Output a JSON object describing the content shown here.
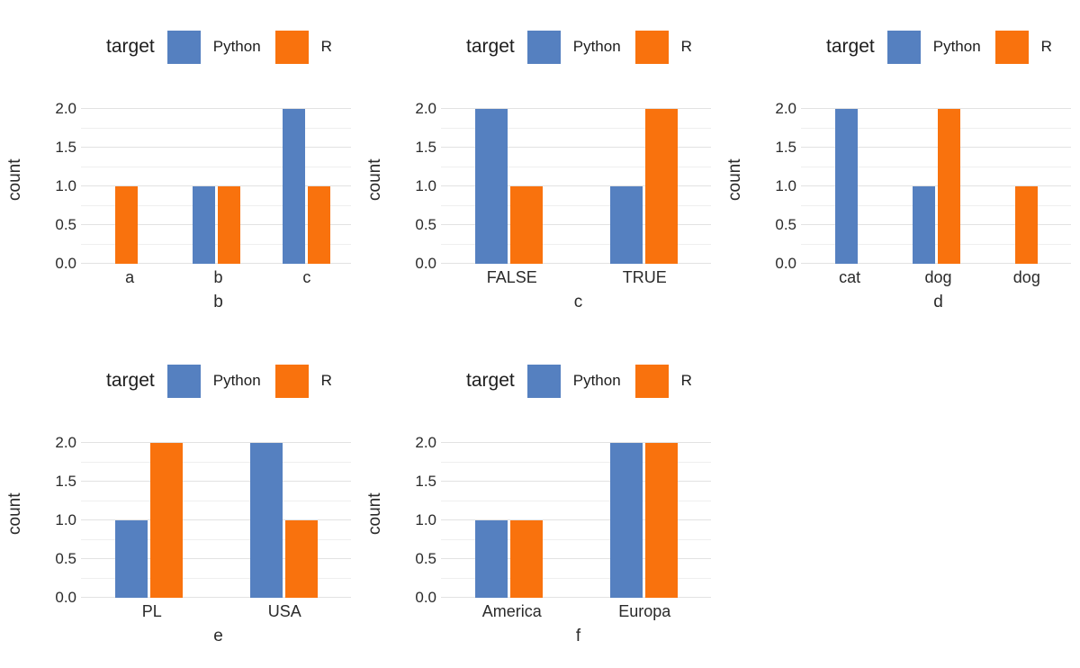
{
  "page": {
    "background": "#ffffff"
  },
  "legend": {
    "title": "target",
    "items": [
      {
        "label": "Python",
        "color": "#5580c0"
      },
      {
        "label": "R",
        "color": "#f9720d"
      }
    ]
  },
  "axis": {
    "ylabel": "count",
    "ytick_labels": [
      "0.0",
      "0.5",
      "1.0",
      "1.5",
      "2.0"
    ],
    "ytick_values": [
      0,
      0.5,
      1,
      1.5,
      2
    ]
  },
  "colors": {
    "python_blue": "#5580c0",
    "r_orange": "#f9720d",
    "gridline_major": "#e2e2e2",
    "gridline_minor": "#efefef",
    "text": "#2a2a2a"
  },
  "chart_data": [
    {
      "type": "bar",
      "title": "",
      "xlabel": "b",
      "ylabel": "count",
      "categories": [
        "a",
        "b",
        "c"
      ],
      "series": [
        {
          "name": "Python",
          "values": [
            null,
            1,
            2
          ]
        },
        {
          "name": "R",
          "values": [
            1,
            1,
            1
          ]
        }
      ],
      "ylim": [
        0,
        2.16
      ],
      "yticks": [
        0,
        0.5,
        1,
        1.5,
        2
      ],
      "grid": true,
      "legend_position": "top"
    },
    {
      "type": "bar",
      "title": "",
      "xlabel": "c",
      "ylabel": "count",
      "categories": [
        "FALSE",
        "TRUE"
      ],
      "series": [
        {
          "name": "Python",
          "values": [
            2,
            1
          ]
        },
        {
          "name": "R",
          "values": [
            1,
            2
          ]
        }
      ],
      "ylim": [
        0,
        2.16
      ],
      "yticks": [
        0,
        0.5,
        1,
        1.5,
        2
      ],
      "grid": true,
      "legend_position": "top"
    },
    {
      "type": "bar",
      "title": "",
      "xlabel": "d",
      "ylabel": "count",
      "categories": [
        "cat",
        "dog",
        "dog"
      ],
      "series": [
        {
          "name": "Python",
          "values": [
            2,
            1,
            null
          ]
        },
        {
          "name": "R",
          "values": [
            null,
            2,
            1
          ]
        }
      ],
      "ylim": [
        0,
        2.16
      ],
      "yticks": [
        0,
        0.5,
        1,
        1.5,
        2
      ],
      "grid": true,
      "legend_position": "top"
    },
    {
      "type": "bar",
      "title": "",
      "xlabel": "e",
      "ylabel": "count",
      "categories": [
        "PL",
        "USA"
      ],
      "series": [
        {
          "name": "Python",
          "values": [
            1,
            2
          ]
        },
        {
          "name": "R",
          "values": [
            2,
            1
          ]
        }
      ],
      "ylim": [
        0,
        2.16
      ],
      "yticks": [
        0,
        0.5,
        1,
        1.5,
        2
      ],
      "grid": true,
      "legend_position": "top"
    },
    {
      "type": "bar",
      "title": "",
      "xlabel": "f",
      "ylabel": "count",
      "categories": [
        "America",
        "Europa"
      ],
      "series": [
        {
          "name": "Python",
          "values": [
            1,
            2
          ]
        },
        {
          "name": "R",
          "values": [
            1,
            2
          ]
        }
      ],
      "ylim": [
        0,
        2.16
      ],
      "yticks": [
        0,
        0.5,
        1,
        1.5,
        2
      ],
      "grid": true,
      "legend_position": "top"
    }
  ]
}
